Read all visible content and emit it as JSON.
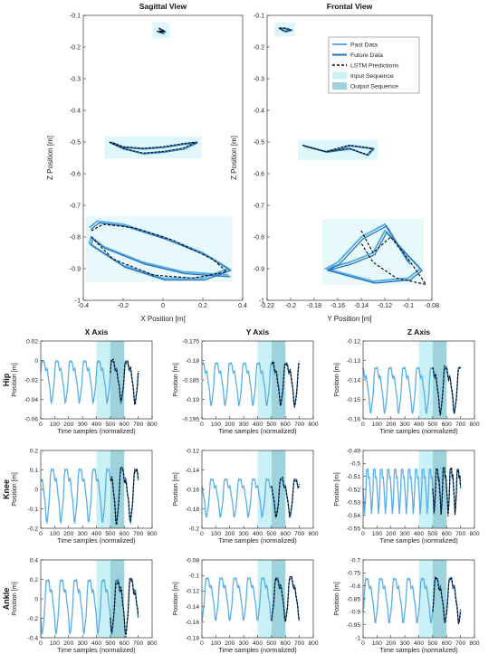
{
  "legend": {
    "past": "Past Data",
    "future": "Future Data",
    "lstm": "LSTM Predictions",
    "input": "Input Sequence",
    "output": "Output Sequence"
  },
  "row_labels": [
    "Hip",
    "Knee",
    "Ankle"
  ],
  "colors": {
    "past": "#5aaee8",
    "future": "#1f6fb5",
    "prediction": "#000000",
    "input_band": "#c9f1f6",
    "output_band": "#9fd3dc"
  },
  "chart_data": [
    {
      "type": "line",
      "panel": "sagittal",
      "title": "Sagittal View",
      "xlabel": "X Position [m]",
      "ylabel": "Z Position [m]",
      "xlim": [
        -0.4,
        0.4
      ],
      "ylim": [
        -1.0,
        -0.1
      ],
      "xticks": [
        -0.4,
        -0.2,
        0,
        0.2,
        0.4
      ],
      "yticks": [
        -1,
        -0.9,
        -0.8,
        -0.7,
        -0.6,
        -0.5,
        -0.4,
        -0.3,
        -0.2,
        -0.1
      ],
      "series": [
        {
          "name": "Past Data",
          "x": [
            -0.37,
            -0.33,
            -0.2,
            0.0,
            0.2,
            0.33,
            0.2,
            0.0,
            -0.2,
            -0.37,
            -0.36,
            -0.3,
            -0.1,
            0.1,
            0.33
          ],
          "y": [
            -0.77,
            -0.75,
            -0.76,
            -0.8,
            -0.85,
            -0.9,
            -0.93,
            -0.93,
            -0.89,
            -0.82,
            -0.8,
            -0.83,
            -0.88,
            -0.91,
            -0.92
          ]
        },
        {
          "name": "LSTM Predictions",
          "x": [
            -0.36,
            -0.3,
            -0.15,
            0.05,
            0.25,
            0.32,
            0.15,
            -0.05,
            -0.25,
            -0.36
          ],
          "y": [
            -0.78,
            -0.76,
            -0.77,
            -0.81,
            -0.87,
            -0.91,
            -0.93,
            -0.92,
            -0.87,
            -0.8
          ]
        }
      ],
      "clusters": [
        {
          "joint": "Hip",
          "x": [
            -0.02,
            0.0,
            -0.03,
            0.01,
            -0.02
          ],
          "y": [
            -0.14,
            -0.155,
            -0.15,
            -0.15,
            -0.14
          ]
        },
        {
          "joint": "Knee",
          "x": [
            -0.27,
            -0.2,
            -0.1,
            0.0,
            0.1,
            0.17,
            0.1,
            0.0,
            -0.1,
            -0.2,
            -0.26
          ],
          "y": [
            -0.5,
            -0.52,
            -0.535,
            -0.53,
            -0.52,
            -0.5,
            -0.505,
            -0.515,
            -0.52,
            -0.515,
            -0.5
          ]
        }
      ]
    },
    {
      "type": "line",
      "panel": "frontal",
      "title": "Frontal View",
      "xlabel": "Y Position [m]",
      "ylabel": "Z Position [m]",
      "xlim": [
        -0.22,
        -0.08
      ],
      "ylim": [
        -1.0,
        -0.1
      ],
      "xticks": [
        -0.22,
        -0.2,
        -0.18,
        -0.16,
        -0.14,
        -0.12,
        -0.1,
        -0.08
      ],
      "yticks": [
        -1,
        -0.9,
        -0.8,
        -0.7,
        -0.6,
        -0.5,
        -0.4,
        -0.3,
        -0.2,
        -0.1
      ],
      "series": [
        {
          "name": "Past Data",
          "x": [
            -0.17,
            -0.15,
            -0.13,
            -0.12,
            -0.09,
            -0.1,
            -0.13,
            -0.15,
            -0.17,
            -0.16,
            -0.14,
            -0.12,
            -0.1
          ],
          "y": [
            -0.9,
            -0.88,
            -0.85,
            -0.78,
            -0.9,
            -0.93,
            -0.94,
            -0.92,
            -0.9,
            -0.88,
            -0.8,
            -0.76,
            -0.88
          ]
        },
        {
          "name": "LSTM Predictions",
          "x": [
            -0.14,
            -0.13,
            -0.115,
            -0.1,
            -0.085,
            -0.11,
            -0.13,
            -0.14
          ],
          "y": [
            -0.78,
            -0.85,
            -0.8,
            -0.87,
            -0.95,
            -0.93,
            -0.88,
            -0.82
          ]
        }
      ],
      "clusters": [
        {
          "joint": "Hip",
          "x": [
            -0.21,
            -0.205,
            -0.2,
            -0.205,
            -0.21
          ],
          "y": [
            -0.14,
            -0.15,
            -0.145,
            -0.14,
            -0.14
          ]
        },
        {
          "joint": "Knee",
          "x": [
            -0.19,
            -0.17,
            -0.15,
            -0.13,
            -0.135,
            -0.15,
            -0.17,
            -0.19
          ],
          "y": [
            -0.51,
            -0.53,
            -0.51,
            -0.52,
            -0.54,
            -0.52,
            -0.53,
            -0.51
          ]
        }
      ]
    },
    {
      "type": "line",
      "panel": "hip-x",
      "title": "X Axis",
      "row": "Hip",
      "xlabel": "Time samples (normalized)",
      "ylabel": "Position [m]",
      "xlim": [
        0,
        800
      ],
      "ylim": [
        -0.06,
        0.02
      ],
      "xticks": [
        0,
        100,
        200,
        300,
        400,
        500,
        600,
        700,
        800
      ],
      "yticks": [
        -0.06,
        -0.04,
        -0.02,
        0,
        0.02
      ],
      "input_range": [
        400,
        500
      ],
      "output_range": [
        500,
        600
      ],
      "cycles": 7,
      "amp": [
        -0.045,
        0.01
      ]
    },
    {
      "type": "line",
      "panel": "hip-y",
      "title": "Y Axis",
      "row": "Hip",
      "xlabel": "Time samples (normalized)",
      "ylabel": "Position [m]",
      "xlim": [
        0,
        800
      ],
      "ylim": [
        -0.195,
        -0.175
      ],
      "xticks": [
        0,
        100,
        200,
        300,
        400,
        500,
        600,
        700,
        800
      ],
      "yticks": [
        -0.195,
        -0.19,
        -0.185,
        -0.18,
        -0.175
      ],
      "input_range": [
        400,
        500
      ],
      "output_range": [
        500,
        600
      ],
      "cycles": 7,
      "amp": [
        -0.192,
        -0.178
      ]
    },
    {
      "type": "line",
      "panel": "hip-z",
      "title": "Z Axis",
      "row": "Hip",
      "xlabel": "Time samples (normalized)",
      "ylabel": "Position [m]",
      "xlim": [
        0,
        800
      ],
      "ylim": [
        -0.16,
        -0.12
      ],
      "xticks": [
        0,
        100,
        200,
        300,
        400,
        500,
        600,
        700,
        800
      ],
      "yticks": [
        -0.16,
        -0.15,
        -0.14,
        -0.13,
        -0.12
      ],
      "input_range": [
        400,
        500
      ],
      "output_range": [
        500,
        600
      ],
      "cycles": 7,
      "amp": [
        -0.158,
        -0.128
      ]
    },
    {
      "type": "line",
      "panel": "knee-x",
      "title": "",
      "row": "Knee",
      "xlabel": "Time samples (normalized)",
      "ylabel": "Position [m]",
      "xlim": [
        0,
        800
      ],
      "ylim": [
        -0.2,
        0.2
      ],
      "xticks": [
        0,
        100,
        200,
        300,
        400,
        500,
        600,
        700,
        800
      ],
      "yticks": [
        -0.2,
        -0.1,
        0,
        0.1,
        0.2
      ],
      "input_range": [
        400,
        500
      ],
      "output_range": [
        500,
        600
      ],
      "cycles": 7,
      "amp": [
        -0.18,
        0.17
      ]
    },
    {
      "type": "line",
      "panel": "knee-y",
      "title": "",
      "row": "Knee",
      "xlabel": "Time samples (normalized)",
      "ylabel": "Position [m]",
      "xlim": [
        0,
        800
      ],
      "ylim": [
        -0.2,
        -0.12
      ],
      "xticks": [
        0,
        100,
        200,
        300,
        400,
        500,
        600,
        700,
        800
      ],
      "yticks": [
        -0.2,
        -0.18,
        -0.16,
        -0.14,
        -0.12
      ],
      "input_range": [
        400,
        500
      ],
      "output_range": [
        500,
        600
      ],
      "cycles": 7,
      "amp": [
        -0.19,
        -0.14
      ]
    },
    {
      "type": "line",
      "panel": "knee-z",
      "title": "",
      "row": "Knee",
      "xlabel": "Time samples (normalized)",
      "ylabel": "Position [m]",
      "xlim": [
        0,
        800
      ],
      "ylim": [
        -0.55,
        -0.49
      ],
      "xticks": [
        0,
        100,
        200,
        300,
        400,
        500,
        600,
        700,
        800
      ],
      "yticks": [
        -0.55,
        -0.54,
        -0.53,
        -0.52,
        -0.51,
        -0.5,
        -0.49
      ],
      "input_range": [
        400,
        500
      ],
      "output_range": [
        500,
        600
      ],
      "cycles": 14,
      "amp": [
        -0.54,
        -0.495
      ]
    },
    {
      "type": "line",
      "panel": "ankle-x",
      "title": "",
      "row": "Ankle",
      "xlabel": "Time samples (normalized)",
      "ylabel": "Position [m]",
      "xlim": [
        0,
        800
      ],
      "ylim": [
        -0.4,
        0.4
      ],
      "xticks": [
        0,
        100,
        200,
        300,
        400,
        500,
        600,
        700,
        800
      ],
      "yticks": [
        -0.4,
        -0.2,
        0,
        0.2,
        0.4
      ],
      "input_range": [
        400,
        500
      ],
      "output_range": [
        500,
        600
      ],
      "cycles": 7,
      "amp": [
        -0.38,
        0.33
      ]
    },
    {
      "type": "line",
      "panel": "ankle-y",
      "title": "",
      "row": "Ankle",
      "xlabel": "Time samples (normalized)",
      "ylabel": "Position [m]",
      "xlim": [
        0,
        800
      ],
      "ylim": [
        -0.18,
        -0.08
      ],
      "xticks": [
        0,
        100,
        200,
        300,
        400,
        500,
        600,
        700,
        800
      ],
      "yticks": [
        -0.18,
        -0.16,
        -0.14,
        -0.12,
        -0.1,
        -0.08
      ],
      "input_range": [
        400,
        500
      ],
      "output_range": [
        500,
        600
      ],
      "cycles": 7,
      "amp": [
        -0.16,
        -0.09
      ]
    },
    {
      "type": "line",
      "panel": "ankle-z",
      "title": "",
      "row": "Ankle",
      "xlabel": "Time samples (normalized)",
      "ylabel": "Position [m]",
      "xlim": [
        0,
        800
      ],
      "ylim": [
        -1.0,
        -0.7
      ],
      "xticks": [
        0,
        100,
        200,
        300,
        400,
        500,
        600,
        700,
        800
      ],
      "yticks": [
        -1,
        -0.95,
        -0.9,
        -0.85,
        -0.8,
        -0.75,
        -0.7
      ],
      "input_range": [
        400,
        500
      ],
      "output_range": [
        500,
        600
      ],
      "cycles": 7,
      "amp": [
        -0.95,
        -0.73
      ]
    }
  ]
}
